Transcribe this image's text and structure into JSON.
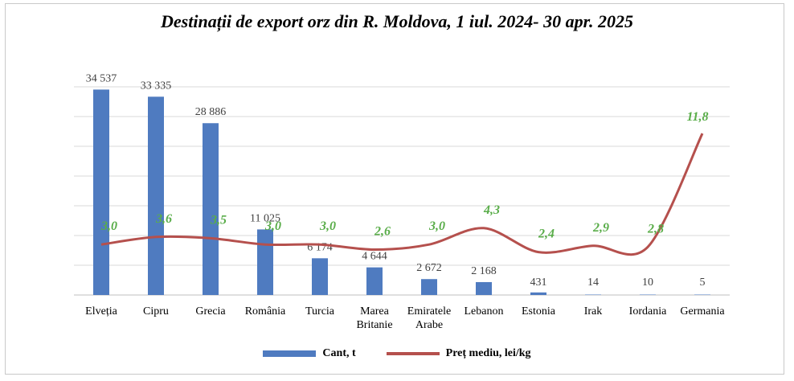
{
  "chart_data": {
    "type": "bar",
    "title": "Destinații de export orz din R. Moldova, 1 iul. 2024- 30 apr. 2025",
    "categories": [
      [
        "Elveția"
      ],
      [
        "Cipru"
      ],
      [
        "Grecia"
      ],
      [
        "România"
      ],
      [
        "Turcia"
      ],
      [
        "Marea",
        "Britanie"
      ],
      [
        "Emiratele",
        "Arabe"
      ],
      [
        "Lebanon"
      ],
      [
        "Estonia"
      ],
      [
        "Irak"
      ],
      [
        "Iordania"
      ],
      [
        "Germania"
      ]
    ],
    "series": [
      {
        "name": "Cant, t",
        "type": "bar",
        "values": [
          34537,
          33335,
          28886,
          11025,
          6174,
          4644,
          2672,
          2168,
          431,
          14,
          10,
          5
        ],
        "labels": [
          "34 537",
          "33 335",
          "28 886",
          "11 025",
          "6 174",
          "4 644",
          "2 672",
          "2 168",
          "431",
          "14",
          "10",
          "5"
        ],
        "color": "#4f7bc0"
      },
      {
        "name": "Preț mediu, lei/kg",
        "type": "line",
        "values": [
          3.0,
          3.6,
          3.5,
          3.0,
          3.0,
          2.6,
          3.0,
          4.3,
          2.4,
          2.9,
          2.8,
          11.8
        ],
        "labels": [
          "3,0",
          "3,6",
          "3,5",
          "3,0",
          "3,0",
          "2,6",
          "3,0",
          "4,3",
          "2,4",
          "2,9",
          "2,8",
          "11,8"
        ],
        "color": "#b5504d",
        "label_color": "#5aad4a"
      }
    ],
    "bar_ylim": [
      0,
      35000
    ],
    "line_ylim": [
      -1,
      15.5
    ],
    "grid": true,
    "legend_position": "bottom"
  }
}
